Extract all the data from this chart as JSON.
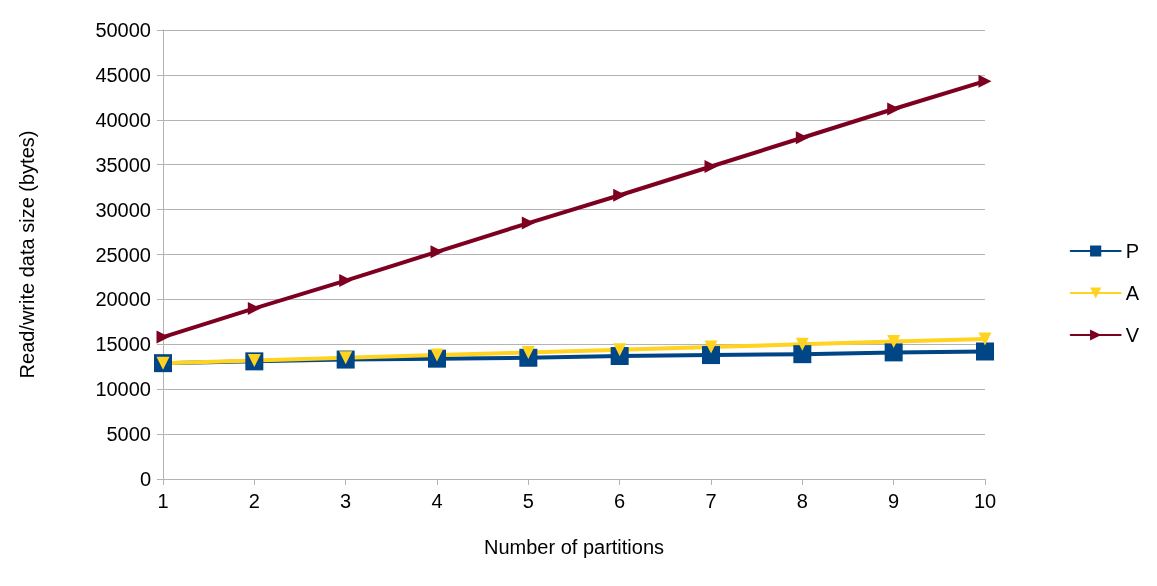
{
  "chart_data": {
    "type": "line",
    "xlabel": "Number of partitions",
    "ylabel": "Read/write data size (bytes)",
    "x": [
      1,
      2,
      3,
      4,
      5,
      6,
      7,
      8,
      9,
      10
    ],
    "series": [
      {
        "name": "P",
        "color": "#004586",
        "marker": "square",
        "values": [
          12900,
          13100,
          13300,
          13400,
          13500,
          13700,
          13800,
          13900,
          14100,
          14200
        ]
      },
      {
        "name": "A",
        "color": "#ffd320",
        "marker": "triangle",
        "values": [
          12900,
          13200,
          13500,
          13800,
          14100,
          14400,
          14700,
          15000,
          15300,
          15600
        ]
      },
      {
        "name": "V",
        "color": "#7e0021",
        "marker": "triangle",
        "values": [
          15800,
          19000,
          22100,
          25300,
          28500,
          31600,
          34800,
          38000,
          41200,
          44300
        ]
      }
    ],
    "xlim": [
      1,
      10
    ],
    "xticks": [
      1,
      2,
      3,
      4,
      5,
      6,
      7,
      8,
      9,
      10
    ],
    "ylim": [
      0,
      50000
    ],
    "yticks": [
      0,
      5000,
      10000,
      15000,
      20000,
      25000,
      30000,
      35000,
      40000,
      45000,
      50000
    ],
    "grid": "y",
    "legend": "right",
    "line_style": "solid"
  }
}
